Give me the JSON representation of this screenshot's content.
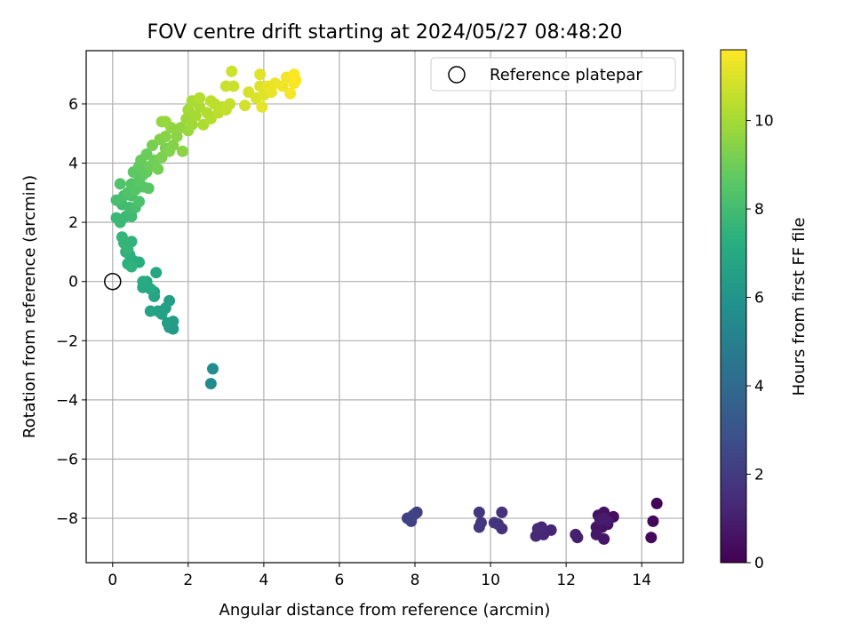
{
  "chart_data": {
    "type": "scatter",
    "title": "FOV centre drift starting at 2024/05/27 08:48:20",
    "xlabel": "Angular distance from reference (arcmin)",
    "ylabel": "Rotation from reference (arcmin)",
    "xlim": [
      -0.7,
      15.1
    ],
    "ylim": [
      -9.5,
      7.8
    ],
    "xticks": [
      0,
      2,
      4,
      6,
      8,
      10,
      12,
      14
    ],
    "yticks": [
      -8,
      -6,
      -4,
      -2,
      0,
      2,
      4,
      6
    ],
    "grid": true,
    "legend": {
      "position": "top-right",
      "entries": [
        "Reference platepar"
      ]
    },
    "reference": {
      "x": 0,
      "y": 0,
      "label": "Reference platepar"
    },
    "colorbar": {
      "label": "Hours from first FF file",
      "range": [
        0,
        11.6
      ],
      "ticks": [
        0,
        2,
        4,
        6,
        8,
        10
      ],
      "colormap": "viridis"
    },
    "points": [
      [
        14.4,
        -7.5,
        0.1
      ],
      [
        14.3,
        -8.1,
        0.2
      ],
      [
        14.25,
        -8.65,
        0.25
      ],
      [
        13.25,
        -7.95,
        0.4
      ],
      [
        13.1,
        -8.2,
        0.45
      ],
      [
        13.0,
        -7.8,
        0.5
      ],
      [
        12.95,
        -8.3,
        0.55
      ],
      [
        12.85,
        -7.9,
        0.6
      ],
      [
        12.8,
        -8.3,
        0.65
      ],
      [
        13.0,
        -8.7,
        0.7
      ],
      [
        12.8,
        -8.55,
        0.75
      ],
      [
        13.1,
        -8.1,
        0.8
      ],
      [
        12.9,
        -8.05,
        0.85
      ],
      [
        13.0,
        -8.0,
        0.9
      ],
      [
        12.3,
        -8.65,
        1.0
      ],
      [
        12.25,
        -8.55,
        1.05
      ],
      [
        11.6,
        -8.4,
        1.2
      ],
      [
        11.4,
        -8.55,
        1.25
      ],
      [
        11.35,
        -8.3,
        1.3
      ],
      [
        11.2,
        -8.6,
        1.35
      ],
      [
        11.25,
        -8.35,
        1.4
      ],
      [
        10.3,
        -8.35,
        1.6
      ],
      [
        10.3,
        -7.8,
        1.65
      ],
      [
        10.2,
        -8.2,
        1.7
      ],
      [
        10.1,
        -8.15,
        1.75
      ],
      [
        9.7,
        -8.3,
        1.8
      ],
      [
        9.75,
        -8.15,
        1.85
      ],
      [
        9.7,
        -7.8,
        1.9
      ],
      [
        8.05,
        -7.8,
        2.1
      ],
      [
        8.0,
        -7.85,
        2.15
      ],
      [
        7.9,
        -8.1,
        2.2
      ],
      [
        7.8,
        -8.0,
        2.25
      ],
      [
        7.95,
        -7.9,
        2.3
      ],
      [
        2.6,
        -3.45,
        5.5
      ],
      [
        2.65,
        -2.95,
        5.55
      ],
      [
        1.6,
        -1.6,
        6.3
      ],
      [
        1.5,
        -1.55,
        6.35
      ],
      [
        1.6,
        -1.35,
        6.4
      ],
      [
        1.45,
        -1.4,
        6.45
      ],
      [
        1.5,
        -0.65,
        6.5
      ],
      [
        1.4,
        -0.9,
        6.55
      ],
      [
        1.3,
        -1.1,
        6.6
      ],
      [
        1.2,
        -1.0,
        6.65
      ],
      [
        1.0,
        -1.0,
        6.7
      ],
      [
        1.1,
        -0.5,
        6.75
      ],
      [
        1.1,
        -0.35,
        6.8
      ],
      [
        1.15,
        0.3,
        6.85
      ],
      [
        0.9,
        0.0,
        6.9
      ],
      [
        0.8,
        -0.2,
        6.95
      ],
      [
        1.0,
        -0.25,
        7.0
      ],
      [
        0.9,
        -0.1,
        7.05
      ],
      [
        0.8,
        0.0,
        7.1
      ],
      [
        0.7,
        0.65,
        7.2
      ],
      [
        0.55,
        0.7,
        7.25
      ],
      [
        0.4,
        0.6,
        7.3
      ],
      [
        0.45,
        0.9,
        7.35
      ],
      [
        0.35,
        1.0,
        7.4
      ],
      [
        0.5,
        0.5,
        7.45
      ],
      [
        0.5,
        1.35,
        7.5
      ],
      [
        0.3,
        1.3,
        7.55
      ],
      [
        0.25,
        1.5,
        7.6
      ],
      [
        0.4,
        1.1,
        7.65
      ],
      [
        0.1,
        2.15,
        7.75
      ],
      [
        0.2,
        2.0,
        7.8
      ],
      [
        0.35,
        2.2,
        7.85
      ],
      [
        0.5,
        2.2,
        7.9
      ],
      [
        0.25,
        2.6,
        7.95
      ],
      [
        0.45,
        2.5,
        8.0
      ],
      [
        0.6,
        2.5,
        8.05
      ],
      [
        0.1,
        2.75,
        8.1
      ],
      [
        0.3,
        2.9,
        8.15
      ],
      [
        0.5,
        2.9,
        8.2
      ],
      [
        0.7,
        2.7,
        8.25
      ],
      [
        0.2,
        3.3,
        8.3
      ],
      [
        0.4,
        3.0,
        8.35
      ],
      [
        0.5,
        3.3,
        8.4
      ],
      [
        0.6,
        3.1,
        8.45
      ],
      [
        0.8,
        3.2,
        8.5
      ],
      [
        0.95,
        3.15,
        8.55
      ],
      [
        0.7,
        3.4,
        8.6
      ],
      [
        0.55,
        3.7,
        8.65
      ],
      [
        0.8,
        3.6,
        8.7
      ],
      [
        0.7,
        3.9,
        8.75
      ],
      [
        0.9,
        3.7,
        8.8
      ],
      [
        0.75,
        4.1,
        8.85
      ],
      [
        0.9,
        4.3,
        8.9
      ],
      [
        1.0,
        3.9,
        8.95
      ],
      [
        1.1,
        4.1,
        9.05
      ],
      [
        1.2,
        3.8,
        9.1
      ],
      [
        1.05,
        4.6,
        9.15
      ],
      [
        1.3,
        4.2,
        9.2
      ],
      [
        1.4,
        4.5,
        9.25
      ],
      [
        1.25,
        4.8,
        9.3
      ],
      [
        1.5,
        4.4,
        9.35
      ],
      [
        1.6,
        4.6,
        9.4
      ],
      [
        1.4,
        4.9,
        9.45
      ],
      [
        1.7,
        4.9,
        9.5
      ],
      [
        1.85,
        4.4,
        9.55
      ],
      [
        1.55,
        5.2,
        9.6
      ],
      [
        1.8,
        5.2,
        9.65
      ],
      [
        1.3,
        5.4,
        9.7
      ],
      [
        1.4,
        5.4,
        9.75
      ],
      [
        2.0,
        5.1,
        9.8
      ],
      [
        1.95,
        5.5,
        9.85
      ],
      [
        2.1,
        5.3,
        9.9
      ],
      [
        2.0,
        5.8,
        9.95
      ],
      [
        2.2,
        5.6,
        10.0
      ],
      [
        2.1,
        6.1,
        10.05
      ],
      [
        2.3,
        5.9,
        10.1
      ],
      [
        2.4,
        5.3,
        10.15
      ],
      [
        2.5,
        5.7,
        10.2
      ],
      [
        2.3,
        6.2,
        10.25
      ],
      [
        2.6,
        5.5,
        10.3
      ],
      [
        2.7,
        6.0,
        10.35
      ],
      [
        2.8,
        5.7,
        10.4
      ],
      [
        2.6,
        6.1,
        10.45
      ],
      [
        2.9,
        5.9,
        10.5
      ],
      [
        3.0,
        5.8,
        10.55
      ],
      [
        3.1,
        6.0,
        10.6
      ],
      [
        3.0,
        6.6,
        10.65
      ],
      [
        3.2,
        6.6,
        10.7
      ],
      [
        3.15,
        7.1,
        10.75
      ],
      [
        3.5,
        5.95,
        10.85
      ],
      [
        3.6,
        6.4,
        10.9
      ],
      [
        3.8,
        6.2,
        10.95
      ],
      [
        3.9,
        6.6,
        11.0
      ],
      [
        3.9,
        7.0,
        11.05
      ],
      [
        4.0,
        6.3,
        11.1
      ],
      [
        3.95,
        5.9,
        11.15
      ],
      [
        4.1,
        6.6,
        11.2
      ],
      [
        4.2,
        6.4,
        11.25
      ],
      [
        4.3,
        6.7,
        11.3
      ],
      [
        4.5,
        6.6,
        11.35
      ],
      [
        4.6,
        6.9,
        11.4
      ],
      [
        4.7,
        6.35,
        11.45
      ],
      [
        4.8,
        6.7,
        11.5
      ],
      [
        4.8,
        7.0,
        11.55
      ],
      [
        4.85,
        6.8,
        11.6
      ]
    ]
  }
}
